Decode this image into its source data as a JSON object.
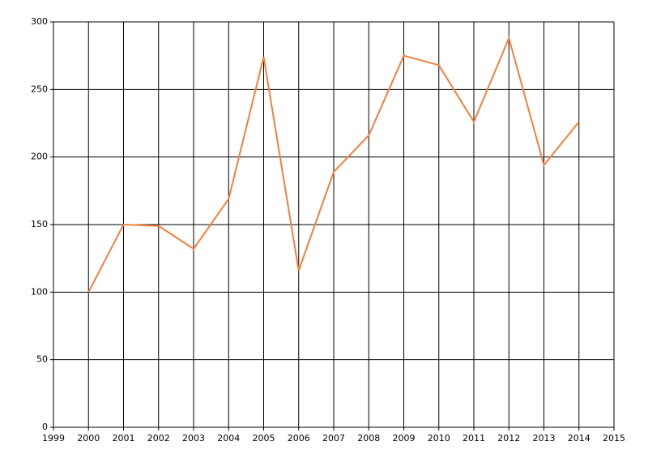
{
  "chart_data": {
    "type": "line",
    "x": [
      2000,
      2001,
      2002,
      2003,
      2004,
      2005,
      2006,
      2007,
      2008,
      2009,
      2010,
      2011,
      2012,
      2013,
      2014
    ],
    "series": [
      {
        "color": "#f47f3c",
        "values": [
          100,
          150,
          149,
          132,
          169,
          274,
          116,
          189,
          216,
          275,
          268,
          226,
          288,
          194,
          226
        ]
      }
    ],
    "xlim": [
      1999,
      2015
    ],
    "xticks": [
      1999,
      2000,
      2001,
      2002,
      2003,
      2004,
      2005,
      2006,
      2007,
      2008,
      2009,
      2010,
      2011,
      2012,
      2013,
      2014,
      2015
    ],
    "ylim": [
      0,
      300
    ],
    "yticks": [
      0,
      50,
      100,
      150,
      200,
      250,
      300
    ],
    "grid": true
  }
}
